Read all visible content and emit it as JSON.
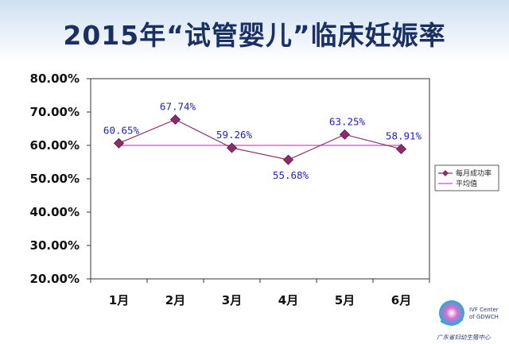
{
  "title": "2015年“试管婴儿”临床妊娠率",
  "chart_data": {
    "type": "line",
    "title": "2015年“试管婴儿”临床妊娠率",
    "categories": [
      "1月",
      "2月",
      "3月",
      "4月",
      "5月",
      "6月"
    ],
    "series": [
      {
        "name": "每月成功率",
        "values": [
          60.65,
          67.74,
          59.26,
          55.68,
          63.25,
          58.91
        ],
        "labels": [
          "60.65%",
          "67.74%",
          "59.26%",
          "55.68%",
          "63.25%",
          "58.91%"
        ],
        "color": "#8b2d6b",
        "marker": "diamond"
      },
      {
        "name": "平均值",
        "values": [
          60.0,
          60.0,
          60.0,
          60.0,
          60.0,
          60.0
        ],
        "color": "#e040d0"
      }
    ],
    "ylim": [
      20,
      80
    ],
    "yticks": [
      "20.00%",
      "30.00%",
      "40.00%",
      "50.00%",
      "60.00%",
      "70.00%",
      "80.00%"
    ],
    "xlabel": "",
    "ylabel": "",
    "grid": false,
    "legend": "right"
  },
  "logo": {
    "line1": "IVF Center",
    "line2": "of GDWCH",
    "footer": "广东省妇幼生殖中心"
  }
}
